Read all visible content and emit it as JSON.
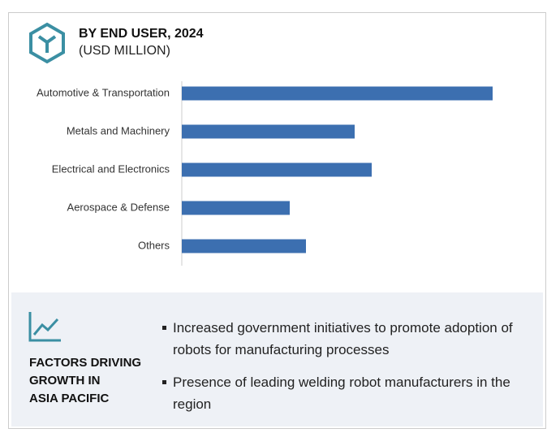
{
  "chart_data": {
    "type": "bar",
    "orientation": "horizontal",
    "title": "BY END USER, 2024",
    "subtitle": "(USD MILLION)",
    "categories": [
      "Automotive & Transportation",
      "Metals and Machinery",
      "Electrical and Electronics",
      "Aerospace & Defense",
      "Others"
    ],
    "values": [
      383,
      213,
      234,
      133,
      153
    ],
    "color": "#3c6fb0",
    "xlim": [
      0,
      420
    ]
  },
  "factors": {
    "heading_lines": [
      "FACTORS DRIVING",
      "GROWTH IN",
      "ASIA PACIFIC"
    ],
    "bullets": [
      "Increased government initiatives to promote adoption of robots for manufacturing processes",
      "Presence of leading welding robot manufacturers in the region"
    ]
  }
}
